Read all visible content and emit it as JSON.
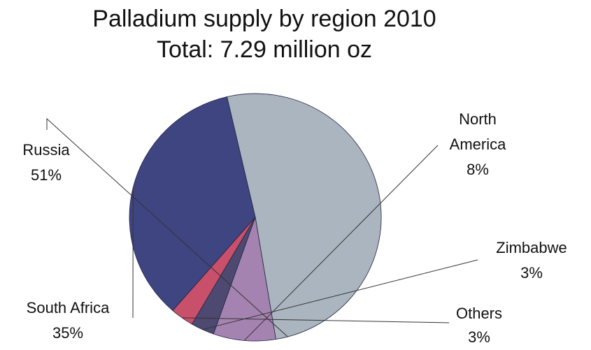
{
  "chart_data": {
    "type": "pie",
    "title": "Palladium supply by region 2010",
    "subtitle": "Total: 7.29 million oz",
    "slices": [
      {
        "name": "Russia",
        "value": 51,
        "label": "51%",
        "color": "#AAB5BF"
      },
      {
        "name": "North America",
        "value": 8,
        "label": "8%",
        "color": "#A583B0"
      },
      {
        "name": "Zimbabwe",
        "value": 3,
        "label": "3%",
        "color": "#4D4970"
      },
      {
        "name": "Others",
        "value": 3,
        "label": "3%",
        "color": "#C8506A"
      },
      {
        "name": "South Africa",
        "value": 35,
        "label": "35%",
        "color": "#3E4580"
      }
    ],
    "legend": "none",
    "data_labels": "outside-with-leader-lines"
  }
}
